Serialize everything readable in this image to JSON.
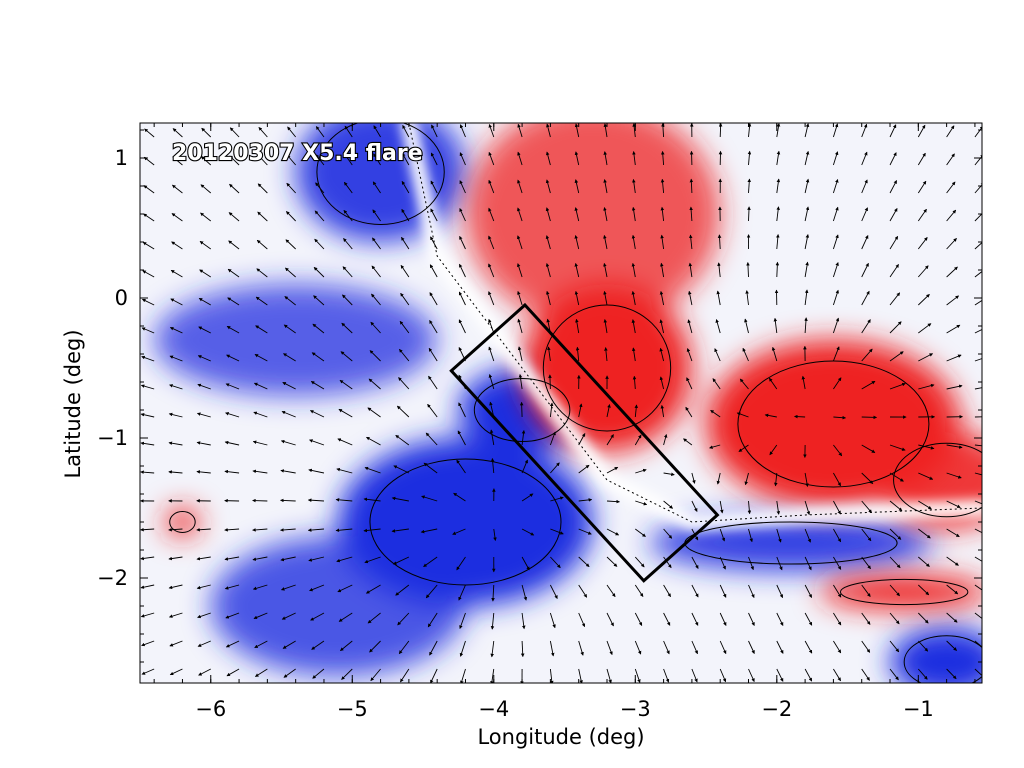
{
  "chart_data": {
    "type": "heatmap",
    "title": "20120307 X5.4 flare",
    "xlabel": "Longitude (deg)",
    "ylabel": "Latitude (deg)",
    "xlim": [
      -6.5,
      -0.55
    ],
    "ylim": [
      -2.75,
      1.25
    ],
    "xticks": [
      -6,
      -5,
      -4,
      -3,
      -2,
      -1
    ],
    "yticks": [
      -2,
      -1,
      0,
      1
    ],
    "xtick_labels": [
      "−6",
      "−5",
      "−4",
      "−3",
      "−2",
      "−1"
    ],
    "ytick_labels": [
      "−2",
      "−1",
      "0",
      "1"
    ],
    "colormap": {
      "negative": "#1f2fe0",
      "zero": "#ffffff",
      "positive": "#ee2222"
    },
    "positive_regions": [
      {
        "name": "upper-north",
        "center": [
          -3.3,
          0.6
        ],
        "radii": [
          0.9,
          0.8
        ],
        "intensity": 0.75
      },
      {
        "name": "flare-ribbon-north",
        "center": [
          -3.2,
          -0.5
        ],
        "radii": [
          0.6,
          0.6
        ],
        "intensity": 1.0
      },
      {
        "name": "east-core",
        "center": [
          -1.6,
          -0.9
        ],
        "radii": [
          0.9,
          0.6
        ],
        "intensity": 1.0
      },
      {
        "name": "east-edge",
        "center": [
          -0.8,
          -1.3
        ],
        "radii": [
          0.5,
          0.35
        ],
        "intensity": 0.9
      },
      {
        "name": "southeast-strip",
        "center": [
          -1.1,
          -2.1
        ],
        "radii": [
          0.6,
          0.12
        ],
        "intensity": 1.0
      },
      {
        "name": "small-spot",
        "center": [
          -6.2,
          -1.6
        ],
        "radii": [
          0.12,
          0.1
        ],
        "intensity": 1.0
      }
    ],
    "negative_regions": [
      {
        "name": "northwest-arm",
        "center": [
          -4.8,
          0.9
        ],
        "radii": [
          0.6,
          0.5
        ],
        "intensity": 0.9
      },
      {
        "name": "central-core",
        "center": [
          -4.2,
          -1.6
        ],
        "radii": [
          0.9,
          0.6
        ],
        "intensity": 1.0
      },
      {
        "name": "ribbon-south",
        "center": [
          -3.8,
          -0.8
        ],
        "radii": [
          0.45,
          0.3
        ],
        "intensity": 1.0
      },
      {
        "name": "west-band",
        "center": [
          -5.4,
          -0.3
        ],
        "radii": [
          1.0,
          0.4
        ],
        "intensity": 0.75
      },
      {
        "name": "southwest",
        "center": [
          -5.1,
          -2.2
        ],
        "radii": [
          0.9,
          0.5
        ],
        "intensity": 0.8
      },
      {
        "name": "east-south-band",
        "center": [
          -1.9,
          -1.75
        ],
        "radii": [
          1.0,
          0.2
        ],
        "intensity": 0.9
      },
      {
        "name": "southeast-corner",
        "center": [
          -0.8,
          -2.6
        ],
        "radii": [
          0.4,
          0.25
        ],
        "intensity": 1.0
      }
    ],
    "polarity_inversion_line": [
      [
        -4.6,
        1.25
      ],
      [
        -4.4,
        0.3
      ],
      [
        -3.8,
        -0.5
      ],
      [
        -3.2,
        -1.3
      ],
      [
        -2.6,
        -1.6
      ],
      [
        -1.8,
        -1.55
      ],
      [
        -0.55,
        -1.5
      ]
    ],
    "box_corners": [
      [
        -4.3,
        -0.52
      ],
      [
        -3.78,
        -0.05
      ],
      [
        -2.42,
        -1.55
      ],
      [
        -2.94,
        -2.02
      ]
    ],
    "vector_field": {
      "source_centers": [
        [
          -4.1,
          -1.6
        ],
        [
          -1.6,
          -0.8
        ]
      ],
      "grid_spacing_deg": 0.2,
      "note": "horizontal field arrows"
    },
    "grid": false,
    "legend": "none"
  }
}
